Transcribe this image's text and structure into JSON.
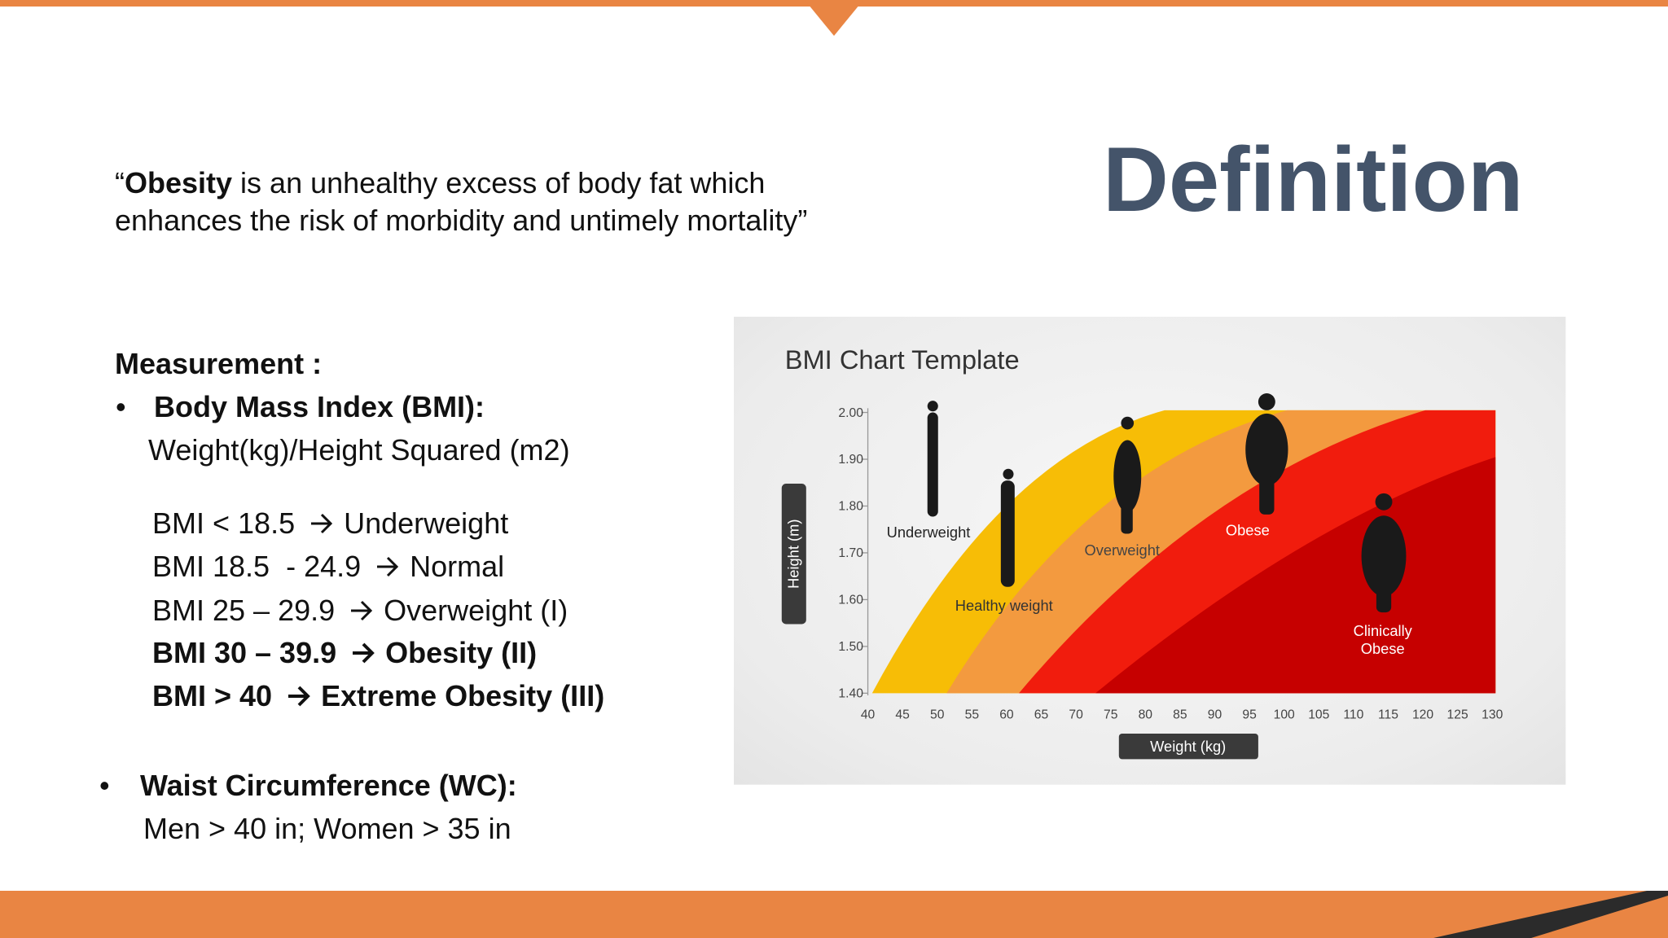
{
  "slide": {
    "title": "Definition",
    "quote": {
      "open": "“",
      "term": "Obesity",
      "rest": " is an unhealthy excess of body fat which enhances the risk of morbidity and untimely mortality”"
    },
    "measurement": {
      "heading": "Measurement :",
      "bmi": {
        "label": "Body Mass Index (BMI):",
        "formula": "Weight(kg)/Height Squared (m2)",
        "ranges": [
          {
            "range": "BMI < 18.5",
            "class": "Underweight",
            "bold": false
          },
          {
            "range": "BMI 18.5  - 24.9",
            "class": "Normal",
            "bold": false
          },
          {
            "range": "BMI 25 – 29.9",
            "class": "Overweight (I)",
            "bold": false
          },
          {
            "range": "BMI 30 – 39.9",
            "class": "Obesity (II)",
            "bold": true
          },
          {
            "range": "BMI > 40",
            "class": "Extreme Obesity (III)",
            "bold": true
          }
        ]
      },
      "waist": {
        "label": "Waist Circumference (WC):",
        "criteria": "Men > 40 in; Women > 35 in"
      }
    },
    "bmi_chart": {
      "title": "BMI Chart Template",
      "y_axis_label": "Height (m)",
      "x_axis_label": "Weight (kg)",
      "yticks": [
        "2.00",
        "1.90",
        "1.80",
        "1.70",
        "1.60",
        "1.50",
        "1.40"
      ],
      "xticks": [
        "40",
        "45",
        "50",
        "55",
        "60",
        "65",
        "70",
        "75",
        "80",
        "85",
        "90",
        "95",
        "100",
        "105",
        "110",
        "115",
        "120",
        "125",
        "130"
      ],
      "labels": [
        "Underweight",
        "Healthy weight",
        "Overweight",
        "Obese",
        "Clinically Obese"
      ]
    }
  }
}
